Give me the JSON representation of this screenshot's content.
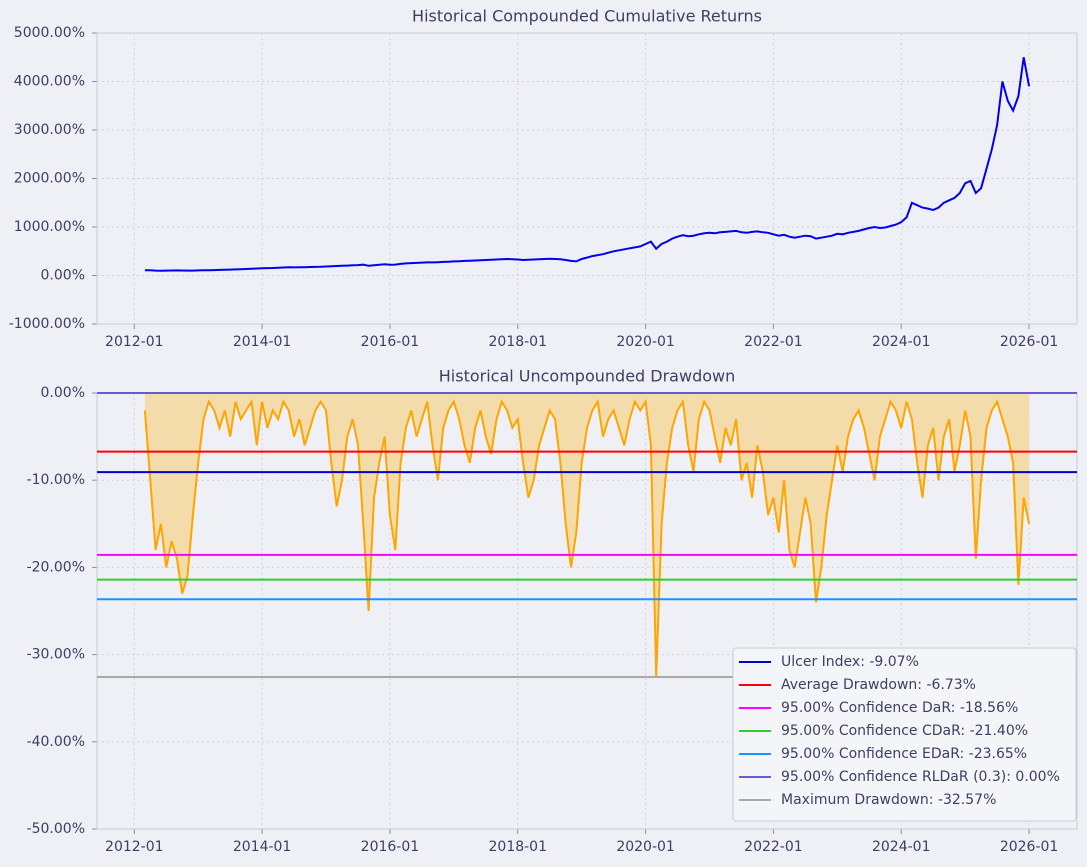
{
  "chart_data": [
    {
      "type": "line",
      "title": "Historical Compounded Cumulative Returns",
      "color": "#0000ee",
      "grid": true,
      "xlim": [
        "2011-06",
        "2026-10"
      ],
      "xticks": [
        "2012-01",
        "2014-01",
        "2016-01",
        "2018-01",
        "2020-01",
        "2022-01",
        "2024-01",
        "2026-01"
      ],
      "ylim": [
        -1000,
        5000
      ],
      "yticks": [
        {
          "value": -1000,
          "label": "-1000.00%"
        },
        {
          "value": 0,
          "label": "0.00%"
        },
        {
          "value": 1000,
          "label": "1000.00%"
        },
        {
          "value": 2000,
          "label": "2000.00%"
        },
        {
          "value": 3000,
          "label": "3000.00%"
        },
        {
          "value": 4000,
          "label": "4000.00%"
        },
        {
          "value": 5000,
          "label": "5000.00%"
        }
      ],
      "x": [
        "2012-03",
        "2012-04",
        "2012-05",
        "2012-06",
        "2012-07",
        "2012-08",
        "2012-09",
        "2012-10",
        "2012-11",
        "2012-12",
        "2013-01",
        "2013-02",
        "2013-03",
        "2013-04",
        "2013-05",
        "2013-06",
        "2013-07",
        "2013-08",
        "2013-09",
        "2013-10",
        "2013-11",
        "2013-12",
        "2014-01",
        "2014-02",
        "2014-03",
        "2014-04",
        "2014-05",
        "2014-06",
        "2014-07",
        "2014-08",
        "2014-09",
        "2014-10",
        "2014-11",
        "2014-12",
        "2015-01",
        "2015-02",
        "2015-03",
        "2015-04",
        "2015-05",
        "2015-06",
        "2015-07",
        "2015-08",
        "2015-09",
        "2015-10",
        "2015-11",
        "2015-12",
        "2016-01",
        "2016-02",
        "2016-03",
        "2016-04",
        "2016-05",
        "2016-06",
        "2016-07",
        "2016-08",
        "2016-09",
        "2016-10",
        "2016-11",
        "2016-12",
        "2017-01",
        "2017-02",
        "2017-03",
        "2017-04",
        "2017-05",
        "2017-06",
        "2017-07",
        "2017-08",
        "2017-09",
        "2017-10",
        "2017-11",
        "2017-12",
        "2018-01",
        "2018-02",
        "2018-03",
        "2018-04",
        "2018-05",
        "2018-06",
        "2018-07",
        "2018-08",
        "2018-09",
        "2018-10",
        "2018-11",
        "2018-12",
        "2019-01",
        "2019-02",
        "2019-03",
        "2019-04",
        "2019-05",
        "2019-06",
        "2019-07",
        "2019-08",
        "2019-09",
        "2019-10",
        "2019-11",
        "2019-12",
        "2020-01",
        "2020-02",
        "2020-03",
        "2020-04",
        "2020-05",
        "2020-06",
        "2020-07",
        "2020-08",
        "2020-09",
        "2020-10",
        "2020-11",
        "2020-12",
        "2021-01",
        "2021-02",
        "2021-03",
        "2021-04",
        "2021-05",
        "2021-06",
        "2021-07",
        "2021-08",
        "2021-09",
        "2021-10",
        "2021-11",
        "2021-12",
        "2022-01",
        "2022-02",
        "2022-03",
        "2022-04",
        "2022-05",
        "2022-06",
        "2022-07",
        "2022-08",
        "2022-09",
        "2022-10",
        "2022-11",
        "2022-12",
        "2023-01",
        "2023-02",
        "2023-03",
        "2023-04",
        "2023-05",
        "2023-06",
        "2023-07",
        "2023-08",
        "2023-09",
        "2023-10",
        "2023-11",
        "2023-12",
        "2024-01",
        "2024-02",
        "2024-03",
        "2024-04",
        "2024-05",
        "2024-06",
        "2024-07",
        "2024-08",
        "2024-09",
        "2024-10",
        "2024-11",
        "2024-12",
        "2025-01",
        "2025-02",
        "2025-03",
        "2025-04",
        "2025-05",
        "2025-06",
        "2025-07",
        "2025-08",
        "2025-09",
        "2025-10",
        "2025-11",
        "2025-12",
        "2026-01"
      ],
      "values": [
        110,
        108,
        100,
        98,
        102,
        104,
        106,
        103,
        100,
        102,
        105,
        108,
        110,
        112,
        115,
        118,
        122,
        125,
        130,
        135,
        140,
        145,
        148,
        152,
        155,
        160,
        165,
        170,
        168,
        172,
        170,
        175,
        178,
        180,
        185,
        190,
        195,
        200,
        205,
        210,
        215,
        225,
        200,
        210,
        220,
        230,
        220,
        225,
        240,
        250,
        255,
        260,
        265,
        270,
        270,
        275,
        280,
        285,
        290,
        295,
        300,
        305,
        310,
        315,
        320,
        325,
        330,
        335,
        340,
        335,
        330,
        320,
        325,
        330,
        335,
        340,
        345,
        340,
        335,
        320,
        300,
        290,
        340,
        370,
        400,
        420,
        440,
        470,
        500,
        520,
        540,
        560,
        580,
        600,
        650,
        700,
        550,
        650,
        700,
        760,
        800,
        830,
        810,
        820,
        850,
        870,
        880,
        870,
        890,
        900,
        910,
        920,
        890,
        880,
        900,
        910,
        890,
        880,
        850,
        820,
        840,
        800,
        780,
        800,
        820,
        810,
        760,
        780,
        800,
        820,
        860,
        850,
        880,
        900,
        920,
        950,
        980,
        1000,
        980,
        990,
        1020,
        1050,
        1100,
        1200,
        1500,
        1450,
        1400,
        1380,
        1350,
        1400,
        1500,
        1550,
        1600,
        1700,
        1900,
        1950,
        1700,
        1800,
        2200,
        2600,
        3100,
        4000,
        3600,
        3400,
        3700,
        4500,
        3900
      ]
    },
    {
      "type": "area",
      "title": "Historical Uncompounded Drawdown",
      "color": "#ffa500",
      "fill": "#f4dcaa",
      "grid": true,
      "xlim": [
        "2011-06",
        "2026-10"
      ],
      "xticks": [
        "2012-01",
        "2014-01",
        "2016-01",
        "2018-01",
        "2020-01",
        "2022-01",
        "2024-01",
        "2026-01"
      ],
      "ylim": [
        -50,
        0
      ],
      "yticks": [
        {
          "value": -50,
          "label": "-50.00%"
        },
        {
          "value": -40,
          "label": "-40.00%"
        },
        {
          "value": -30,
          "label": "-30.00%"
        },
        {
          "value": -20,
          "label": "-20.00%"
        },
        {
          "value": -10,
          "label": "-10.00%"
        },
        {
          "value": 0,
          "label": "0.00%"
        }
      ],
      "x": [
        "2012-03",
        "2012-04",
        "2012-05",
        "2012-06",
        "2012-07",
        "2012-08",
        "2012-09",
        "2012-10",
        "2012-11",
        "2012-12",
        "2013-01",
        "2013-02",
        "2013-03",
        "2013-04",
        "2013-05",
        "2013-06",
        "2013-07",
        "2013-08",
        "2013-09",
        "2013-10",
        "2013-11",
        "2013-12",
        "2014-01",
        "2014-02",
        "2014-03",
        "2014-04",
        "2014-05",
        "2014-06",
        "2014-07",
        "2014-08",
        "2014-09",
        "2014-10",
        "2014-11",
        "2014-12",
        "2015-01",
        "2015-02",
        "2015-03",
        "2015-04",
        "2015-05",
        "2015-06",
        "2015-07",
        "2015-08",
        "2015-09",
        "2015-10",
        "2015-11",
        "2015-12",
        "2016-01",
        "2016-02",
        "2016-03",
        "2016-04",
        "2016-05",
        "2016-06",
        "2016-07",
        "2016-08",
        "2016-09",
        "2016-10",
        "2016-11",
        "2016-12",
        "2017-01",
        "2017-02",
        "2017-03",
        "2017-04",
        "2017-05",
        "2017-06",
        "2017-07",
        "2017-08",
        "2017-09",
        "2017-10",
        "2017-11",
        "2017-12",
        "2018-01",
        "2018-02",
        "2018-03",
        "2018-04",
        "2018-05",
        "2018-06",
        "2018-07",
        "2018-08",
        "2018-09",
        "2018-10",
        "2018-11",
        "2018-12",
        "2019-01",
        "2019-02",
        "2019-03",
        "2019-04",
        "2019-05",
        "2019-06",
        "2019-07",
        "2019-08",
        "2019-09",
        "2019-10",
        "2019-11",
        "2019-12",
        "2020-01",
        "2020-02",
        "2020-03",
        "2020-04",
        "2020-05",
        "2020-06",
        "2020-07",
        "2020-08",
        "2020-09",
        "2020-10",
        "2020-11",
        "2020-12",
        "2021-01",
        "2021-02",
        "2021-03",
        "2021-04",
        "2021-05",
        "2021-06",
        "2021-07",
        "2021-08",
        "2021-09",
        "2021-10",
        "2021-11",
        "2021-12",
        "2022-01",
        "2022-02",
        "2022-03",
        "2022-04",
        "2022-05",
        "2022-06",
        "2022-07",
        "2022-08",
        "2022-09",
        "2022-10",
        "2022-11",
        "2022-12",
        "2023-01",
        "2023-02",
        "2023-03",
        "2023-04",
        "2023-05",
        "2023-06",
        "2023-07",
        "2023-08",
        "2023-09",
        "2023-10",
        "2023-11",
        "2023-12",
        "2024-01",
        "2024-02",
        "2024-03",
        "2024-04",
        "2024-05",
        "2024-06",
        "2024-07",
        "2024-08",
        "2024-09",
        "2024-10",
        "2024-11",
        "2024-12",
        "2025-01",
        "2025-02",
        "2025-03",
        "2025-04",
        "2025-05",
        "2025-06",
        "2025-07",
        "2025-08",
        "2025-09",
        "2025-10",
        "2025-11",
        "2025-12",
        "2026-01"
      ],
      "values": [
        -2,
        -10,
        -18,
        -15,
        -20,
        -17,
        -19,
        -23,
        -21,
        -14,
        -8,
        -3,
        -1,
        -2,
        -4,
        -2,
        -5,
        -1,
        -3,
        -2,
        -1,
        -6,
        -1,
        -4,
        -2,
        -3,
        -1,
        -2,
        -5,
        -3,
        -6,
        -4,
        -2,
        -1,
        -2,
        -8,
        -13,
        -10,
        -5,
        -3,
        -6,
        -15,
        -25,
        -12,
        -8,
        -5,
        -14,
        -18,
        -8,
        -4,
        -2,
        -5,
        -3,
        -1,
        -6,
        -10,
        -4,
        -2,
        -1,
        -3,
        -6,
        -8,
        -4,
        -2,
        -5,
        -7,
        -3,
        -1,
        -2,
        -4,
        -3,
        -8,
        -12,
        -10,
        -6,
        -4,
        -2,
        -3,
        -8,
        -15,
        -20,
        -16,
        -8,
        -4,
        -2,
        -1,
        -5,
        -3,
        -2,
        -4,
        -6,
        -3,
        -1,
        -2,
        -1,
        -6,
        -32.5,
        -15,
        -8,
        -4,
        -2,
        -1,
        -6,
        -9,
        -3,
        -1,
        -2,
        -5,
        -8,
        -4,
        -6,
        -3,
        -10,
        -8,
        -12,
        -6,
        -9,
        -14,
        -12,
        -16,
        -10,
        -18,
        -20,
        -16,
        -12,
        -15,
        -24,
        -20,
        -14,
        -10,
        -6,
        -9,
        -5,
        -3,
        -2,
        -4,
        -7,
        -10,
        -5,
        -3,
        -1,
        -2,
        -4,
        -1,
        -3,
        -8,
        -12,
        -6,
        -4,
        -10,
        -5,
        -3,
        -9,
        -6,
        -2,
        -5,
        -19,
        -10,
        -4,
        -2,
        -1,
        -3,
        -5,
        -8,
        -22,
        -12,
        -15
      ],
      "hlines": [
        {
          "label": "Ulcer Index: -9.07%",
          "value": -9.07,
          "color": "#0000cd"
        },
        {
          "label": "Average Drawdown: -6.73%",
          "value": -6.73,
          "color": "#ff0000"
        },
        {
          "label": "95.00% Confidence DaR: -18.56%",
          "value": -18.56,
          "color": "#ff00ff"
        },
        {
          "label": "95.00% Confidence CDaR: -21.40%",
          "value": -21.4,
          "color": "#32cd32"
        },
        {
          "label": "95.00% Confidence EDaR: -23.65%",
          "value": -23.65,
          "color": "#1e90ff"
        },
        {
          "label": "95.00% Confidence RLDaR (0.3): 0.00%",
          "value": 0.0,
          "color": "#6a5acd"
        },
        {
          "label": "Maximum Drawdown: -32.57%",
          "value": -32.57,
          "color": "#a9a9a9"
        }
      ],
      "legend": "lower right"
    }
  ]
}
